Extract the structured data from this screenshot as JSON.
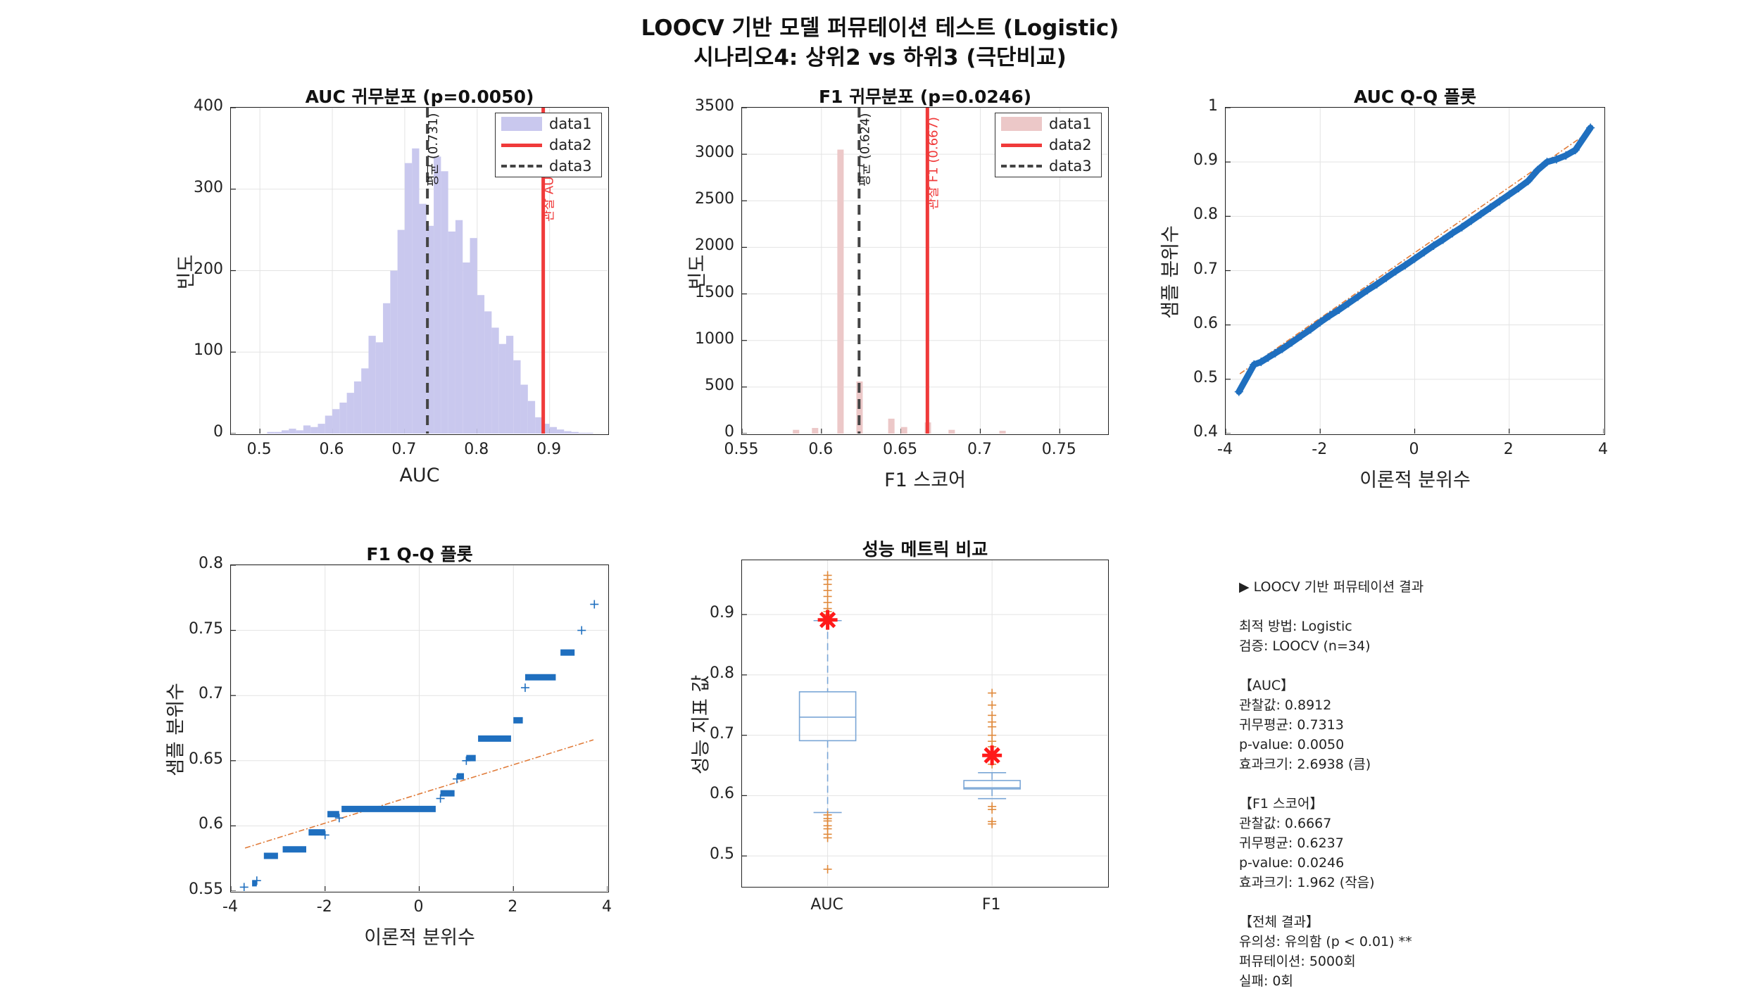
{
  "figure": {
    "title_line1": "LOOCV 기반 모델 퍼뮤테이션 테스트 (Logistic)",
    "title_line2": "시나리오4: 상위2 vs 하위3 (극단비교)"
  },
  "colors": {
    "auc_hist": "#c9c8ee",
    "f1_hist": "#ecc8c8",
    "observed": "#f03a3a",
    "mean_line": "#444444",
    "qq_points": "#1f6fbf",
    "qq_ref": "#e07b39",
    "box_line": "#7aa6d6",
    "outlier": "#e08a3c",
    "star": "#ff1a1a"
  },
  "chart_data": [
    {
      "id": "auc_hist",
      "type": "bar",
      "title": "AUC 귀무분포 (p=0.0050)",
      "xlabel": "AUC",
      "ylabel": "빈도",
      "xlim": [
        0.46,
        0.98
      ],
      "ylim": [
        0,
        400
      ],
      "xticks": [
        "0.5",
        "0.6",
        "0.7",
        "0.8",
        "0.9"
      ],
      "xtick_values": [
        0.5,
        0.6,
        0.7,
        0.8,
        0.9
      ],
      "yticks": [
        "0",
        "100",
        "200",
        "300",
        "400"
      ],
      "ytick_values": [
        0,
        100,
        200,
        300,
        400
      ],
      "bin_width": 0.01,
      "bin_centers": [
        0.515,
        0.525,
        0.535,
        0.545,
        0.555,
        0.565,
        0.575,
        0.585,
        0.595,
        0.605,
        0.615,
        0.625,
        0.635,
        0.645,
        0.655,
        0.665,
        0.675,
        0.685,
        0.695,
        0.705,
        0.715,
        0.725,
        0.735,
        0.745,
        0.755,
        0.765,
        0.775,
        0.785,
        0.795,
        0.805,
        0.815,
        0.825,
        0.835,
        0.845,
        0.855,
        0.865,
        0.875,
        0.885,
        0.895,
        0.905,
        0.915,
        0.925,
        0.935,
        0.945,
        0.955
      ],
      "values": [
        2,
        2,
        4,
        6,
        4,
        10,
        8,
        12,
        22,
        30,
        38,
        50,
        64,
        80,
        120,
        112,
        160,
        200,
        250,
        332,
        350,
        282,
        255,
        340,
        322,
        248,
        262,
        210,
        240,
        170,
        150,
        130,
        110,
        120,
        90,
        60,
        40,
        20,
        12,
        8,
        5,
        3,
        2,
        1,
        1
      ],
      "legend": [
        "data1",
        "data2",
        "data3"
      ],
      "legend_position": "top-right",
      "observed_value": 0.8912,
      "observed_label": "관찰 AUC (0.891)",
      "mean_value": 0.7313,
      "mean_label": "평균 (0.731)",
      "grid": true
    },
    {
      "id": "f1_hist",
      "type": "bar",
      "title": "F1 귀무분포 (p=0.0246)",
      "xlabel": "F1 스코어",
      "ylabel": "빈도",
      "xlim": [
        0.55,
        0.78
      ],
      "ylim": [
        0,
        3500
      ],
      "xticks": [
        "0.55",
        "0.6",
        "0.65",
        "0.7",
        "0.75"
      ],
      "xtick_values": [
        0.55,
        0.6,
        0.65,
        0.7,
        0.75
      ],
      "yticks": [
        "0",
        "500",
        "1000",
        "1500",
        "2000",
        "2500",
        "3000",
        "3500"
      ],
      "ytick_values": [
        0,
        500,
        1000,
        1500,
        2000,
        2500,
        3000,
        3500
      ],
      "bin_width": 0.004,
      "bin_centers": [
        0.584,
        0.596,
        0.612,
        0.624,
        0.644,
        0.652,
        0.667,
        0.682,
        0.714
      ],
      "values": [
        40,
        60,
        3050,
        560,
        160,
        70,
        120,
        40,
        30
      ],
      "legend": [
        "data1",
        "data2",
        "data3"
      ],
      "legend_position": "top-right",
      "observed_value": 0.6667,
      "observed_label": "관찰 F1 (0.667)",
      "mean_value": 0.6237,
      "mean_label": "평균 (0.624)",
      "grid": true
    },
    {
      "id": "auc_qq",
      "type": "scatter",
      "title": "AUC Q-Q 플롯",
      "xlabel": "이론적 분위수",
      "ylabel": "샘플 분위수",
      "xlim": [
        -4,
        4
      ],
      "ylim": [
        0.4,
        1
      ],
      "xticks": [
        "-4",
        "-2",
        "0",
        "2",
        "4"
      ],
      "xtick_values": [
        -4,
        -2,
        0,
        2,
        4
      ],
      "yticks": [
        "0.4",
        "0.5",
        "0.6",
        "0.7",
        "0.8",
        "0.9",
        "1"
      ],
      "ytick_values": [
        0.4,
        0.5,
        0.6,
        0.7,
        0.8,
        0.9,
        1
      ],
      "points_x": [
        -3.72,
        -3.4,
        -3.25,
        -3.1,
        -2.95,
        -2.8,
        -2.6,
        -2.4,
        -2.2,
        -2.0,
        -1.8,
        -1.6,
        -1.4,
        -1.2,
        -1.0,
        -0.8,
        -0.6,
        -0.4,
        -0.2,
        0.0,
        0.2,
        0.4,
        0.6,
        0.8,
        1.0,
        1.2,
        1.4,
        1.6,
        1.8,
        2.0,
        2.2,
        2.4,
        2.6,
        2.8,
        3.0,
        3.2,
        3.4,
        3.72
      ],
      "points_y": [
        0.477,
        0.527,
        0.532,
        0.54,
        0.548,
        0.556,
        0.568,
        0.58,
        0.592,
        0.605,
        0.617,
        0.628,
        0.64,
        0.652,
        0.664,
        0.675,
        0.687,
        0.699,
        0.71,
        0.722,
        0.734,
        0.746,
        0.757,
        0.769,
        0.78,
        0.792,
        0.804,
        0.816,
        0.828,
        0.84,
        0.852,
        0.865,
        0.885,
        0.9,
        0.905,
        0.912,
        0.922,
        0.963
      ],
      "ref_line": {
        "x": [
          -3.7,
          3.7
        ],
        "y": [
          0.51,
          0.956
        ]
      },
      "grid": true
    },
    {
      "id": "f1_qq",
      "type": "scatter",
      "title": "F1 Q-Q 플롯",
      "xlabel": "이론적 분위수",
      "ylabel": "샘플 분위수",
      "xlim": [
        -4,
        4
      ],
      "ylim": [
        0.55,
        0.8
      ],
      "xticks": [
        "-4",
        "-2",
        "0",
        "2",
        "4"
      ],
      "xtick_values": [
        -4,
        -2,
        0,
        2,
        4
      ],
      "yticks": [
        "0.55",
        "0.6",
        "0.65",
        "0.7",
        "0.75",
        "0.8"
      ],
      "ytick_values": [
        0.55,
        0.6,
        0.65,
        0.7,
        0.75,
        0.8
      ],
      "segments": [
        {
          "x": [
            -3.55,
            -3.45
          ],
          "y": 0.556
        },
        {
          "x": [
            -3.3,
            -3.0
          ],
          "y": 0.577
        },
        {
          "x": [
            -2.9,
            -2.4
          ],
          "y": 0.582
        },
        {
          "x": [
            -2.35,
            -2.0
          ],
          "y": 0.595
        },
        {
          "x": [
            -1.95,
            -1.7
          ],
          "y": 0.609
        },
        {
          "x": [
            -1.65,
            0.35
          ],
          "y": 0.613
        },
        {
          "x": [
            0.45,
            0.75
          ],
          "y": 0.625
        },
        {
          "x": [
            0.8,
            0.95
          ],
          "y": 0.638
        },
        {
          "x": [
            1.0,
            1.2
          ],
          "y": 0.652
        },
        {
          "x": [
            1.25,
            1.95
          ],
          "y": 0.667
        },
        {
          "x": [
            2.0,
            2.2
          ],
          "y": 0.681
        },
        {
          "x": [
            2.25,
            2.9
          ],
          "y": 0.714
        },
        {
          "x": [
            3.0,
            3.3
          ],
          "y": 0.733
        }
      ],
      "points_x": [
        -3.72,
        -3.45,
        3.45,
        3.72,
        2.25,
        1.0,
        0.8,
        0.45,
        -1.7,
        -2.0
      ],
      "points_y": [
        0.553,
        0.558,
        0.75,
        0.77,
        0.706,
        0.65,
        0.636,
        0.621,
        0.606,
        0.593
      ],
      "ref_line": {
        "x": [
          -3.7,
          3.7
        ],
        "y": [
          0.583,
          0.666
        ]
      },
      "grid": true
    },
    {
      "id": "metric_box",
      "type": "box",
      "title": "성능 메트릭 비교",
      "ylabel": "성능 지표 값",
      "categories": [
        "AUC",
        "F1"
      ],
      "ylim": [
        0.45,
        0.99
      ],
      "yticks": [
        "0.5",
        "0.6",
        "0.7",
        "0.8",
        "0.9"
      ],
      "ytick_values": [
        0.5,
        0.6,
        0.7,
        0.8,
        0.9
      ],
      "boxes": [
        {
          "q1": 0.691,
          "median": 0.73,
          "q3": 0.772,
          "whisker_low": 0.572,
          "whisker_high": 0.89,
          "outliers": [
            0.478,
            0.53,
            0.536,
            0.545,
            0.55,
            0.558,
            0.562,
            0.568,
            0.9,
            0.905,
            0.91,
            0.92,
            0.93,
            0.94,
            0.95,
            0.958,
            0.965
          ],
          "observed": 0.8912
        },
        {
          "q1": 0.611,
          "median": 0.613,
          "q3": 0.625,
          "whisker_low": 0.595,
          "whisker_high": 0.638,
          "outliers": [
            0.553,
            0.557,
            0.577,
            0.582,
            0.652,
            0.667,
            0.681,
            0.69,
            0.7,
            0.714,
            0.722,
            0.733,
            0.75,
            0.77
          ],
          "observed": 0.6667
        }
      ],
      "grid": true
    }
  ],
  "summary": {
    "lines": [
      "▶ LOOCV 기반 퍼뮤테이션 결과",
      "",
      "최적 방법: Logistic",
      "검증: LOOCV (n=34)",
      "",
      "【AUC】",
      "관찰값: 0.8912",
      "귀무평균: 0.7313",
      "p-value: 0.0050",
      "효과크기: 2.6938 (큼)",
      "",
      "【F1 스코어】",
      "관찰값: 0.6667",
      "귀무평균: 0.6237",
      "p-value: 0.0246",
      "효과크기: 1.962 (작음)",
      "",
      "【전체 결과】",
      "유의성: 유의함 (p < 0.01) **",
      "퍼뮤테이션: 5000회",
      "실패: 0회"
    ]
  }
}
